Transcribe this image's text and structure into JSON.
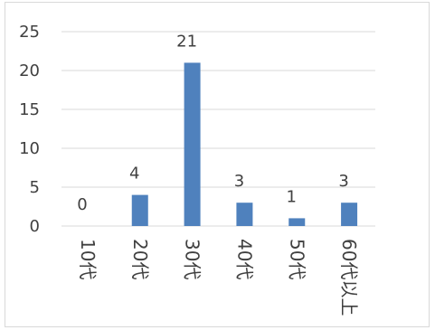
{
  "chart_data": {
    "type": "bar",
    "categories": [
      "10代",
      "20代",
      "30代",
      "40代",
      "50代",
      "60代以上"
    ],
    "values": [
      0,
      4,
      21,
      3,
      1,
      3
    ],
    "data_labels": [
      "0",
      "4",
      "21",
      "3",
      "1",
      "3"
    ],
    "ylim": [
      0,
      25
    ],
    "y_ticks": [
      0,
      5,
      10,
      15,
      20,
      25
    ],
    "y_tick_labels": [
      "0",
      "5",
      "10",
      "15",
      "20",
      "25"
    ],
    "grid": true,
    "colors": {
      "bar": "#4f81bd",
      "grid": "#d9d9d9",
      "text": "#404040"
    }
  }
}
